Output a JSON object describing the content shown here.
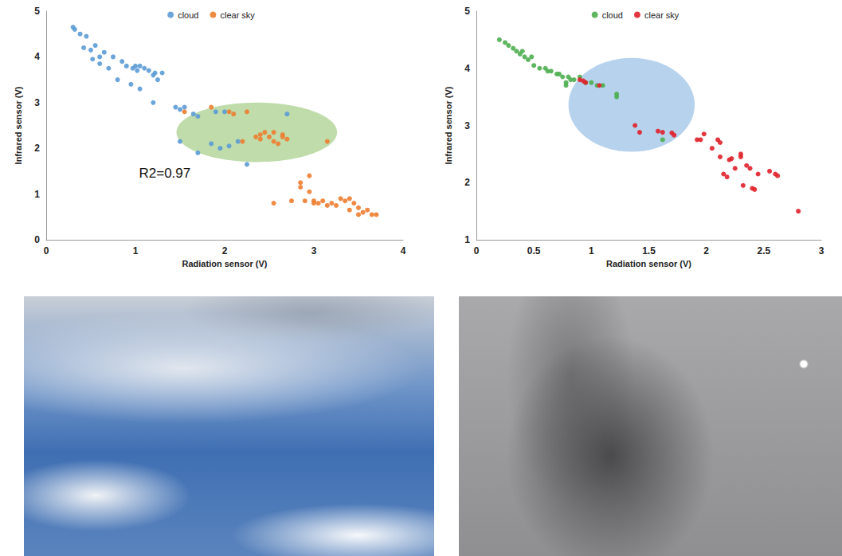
{
  "chart_data": [
    {
      "type": "scatter",
      "x_label": "Radiation sensor (V)",
      "y_label": "Infrared sensor (V)",
      "annotations": [
        "R2=0.97"
      ],
      "xlim": [
        0,
        4
      ],
      "xticks": [
        0,
        1,
        2,
        3,
        4
      ],
      "ylim": [
        0,
        5
      ],
      "yticks": [
        0,
        1,
        2,
        3,
        4,
        5
      ],
      "grid": false,
      "legend": "top",
      "marker": "circle",
      "series": [
        {
          "name": "cloud",
          "color": "#5b9bd5",
          "x": [
            0.3,
            0.32,
            0.38,
            0.45,
            0.42,
            0.5,
            0.55,
            0.52,
            0.6,
            0.65,
            0.6,
            0.7,
            0.75,
            0.8,
            0.85,
            0.9,
            0.95,
            0.97,
            1.0,
            1.02,
            1.05,
            1.05,
            1.1,
            1.15,
            1.2,
            1.2,
            1.22,
            1.25,
            1.3,
            1.45,
            1.5,
            1.5,
            1.55,
            1.65,
            1.7,
            1.7,
            1.85,
            1.9,
            1.95,
            2.0,
            2.05,
            2.15,
            2.25,
            2.7
          ],
          "values": [
            4.65,
            4.6,
            4.5,
            4.45,
            4.2,
            4.15,
            4.25,
            3.95,
            4.0,
            4.1,
            3.85,
            3.75,
            4.0,
            3.5,
            3.9,
            3.8,
            3.4,
            3.75,
            3.8,
            3.7,
            3.3,
            3.8,
            3.75,
            3.7,
            3.6,
            3.0,
            3.65,
            3.5,
            3.65,
            2.9,
            2.85,
            2.15,
            2.9,
            2.75,
            2.7,
            1.9,
            2.1,
            2.8,
            2.0,
            2.8,
            2.05,
            2.15,
            1.65,
            2.75
          ]
        },
        {
          "name": "clear sky",
          "color": "#ed7d31",
          "x": [
            1.55,
            1.85,
            2.05,
            2.1,
            2.2,
            2.25,
            2.35,
            2.4,
            2.45,
            2.5,
            2.55,
            2.4,
            2.6,
            2.65,
            2.7,
            2.55,
            2.65,
            3.15,
            2.55,
            2.75,
            2.85,
            2.85,
            2.95,
            2.95,
            3.0,
            3.05,
            3.1,
            3.15,
            3.2,
            3.25,
            3.3,
            3.35,
            3.4,
            3.45,
            3.5,
            3.5,
            3.55,
            3.6,
            3.65,
            3.7,
            2.9,
            3.0,
            3.4
          ],
          "values": [
            2.8,
            2.9,
            2.8,
            2.75,
            2.15,
            2.8,
            2.25,
            2.3,
            2.35,
            2.25,
            2.35,
            2.2,
            2.1,
            2.25,
            2.2,
            2.15,
            2.3,
            2.15,
            0.8,
            0.85,
            1.15,
            1.25,
            1.05,
            1.4,
            0.85,
            0.8,
            0.85,
            0.75,
            0.8,
            0.75,
            0.9,
            0.85,
            0.65,
            0.8,
            0.7,
            0.55,
            0.6,
            0.65,
            0.55,
            0.55,
            0.85,
            0.8,
            0.9
          ]
        }
      ]
    },
    {
      "type": "scatter",
      "x_label": "Radiation sensor (V)",
      "y_label": "Infrared sensor (V)",
      "xlim": [
        0,
        3
      ],
      "xticks": [
        0,
        0.5,
        1,
        1.5,
        2,
        2.5,
        3
      ],
      "ylim": [
        1,
        5
      ],
      "yticks": [
        1,
        2,
        3,
        4,
        5
      ],
      "grid": false,
      "legend": "top",
      "marker": "circle",
      "series": [
        {
          "name": "cloud",
          "color": "#4cae4f",
          "x": [
            0.2,
            0.25,
            0.28,
            0.32,
            0.35,
            0.38,
            0.4,
            0.42,
            0.45,
            0.48,
            0.5,
            0.55,
            0.6,
            0.62,
            0.65,
            0.7,
            0.72,
            0.75,
            0.78,
            0.8,
            0.82,
            0.85,
            0.9,
            0.95,
            1.0,
            1.05,
            1.1,
            1.22,
            1.22,
            1.62,
            0.78
          ],
          "values": [
            4.5,
            4.45,
            4.4,
            4.35,
            4.3,
            4.25,
            4.3,
            4.2,
            4.15,
            4.2,
            4.05,
            4.0,
            4.0,
            3.95,
            3.95,
            3.9,
            3.9,
            3.85,
            3.7,
            3.85,
            3.8,
            3.8,
            3.85,
            3.75,
            3.75,
            3.7,
            3.7,
            3.55,
            3.5,
            2.75,
            3.75
          ]
        },
        {
          "name": "clear sky",
          "color": "#e0202a",
          "x": [
            0.9,
            0.93,
            0.95,
            1.07,
            1.38,
            1.42,
            1.58,
            1.62,
            1.7,
            1.72,
            1.92,
            1.95,
            1.98,
            2.05,
            2.1,
            2.12,
            2.12,
            2.15,
            2.18,
            2.2,
            2.22,
            2.25,
            2.3,
            2.32,
            2.35,
            2.38,
            2.4,
            2.42,
            2.45,
            2.55,
            2.6,
            2.62,
            2.8,
            2.3
          ],
          "values": [
            3.8,
            3.78,
            3.75,
            3.7,
            3.0,
            2.88,
            2.9,
            2.88,
            2.87,
            2.83,
            2.75,
            2.75,
            2.85,
            2.6,
            2.75,
            2.7,
            2.45,
            2.15,
            2.1,
            2.4,
            2.42,
            2.25,
            2.45,
            1.95,
            2.3,
            2.25,
            1.9,
            1.88,
            2.15,
            2.2,
            2.15,
            2.12,
            1.5,
            2.5
          ]
        }
      ]
    }
  ]
}
